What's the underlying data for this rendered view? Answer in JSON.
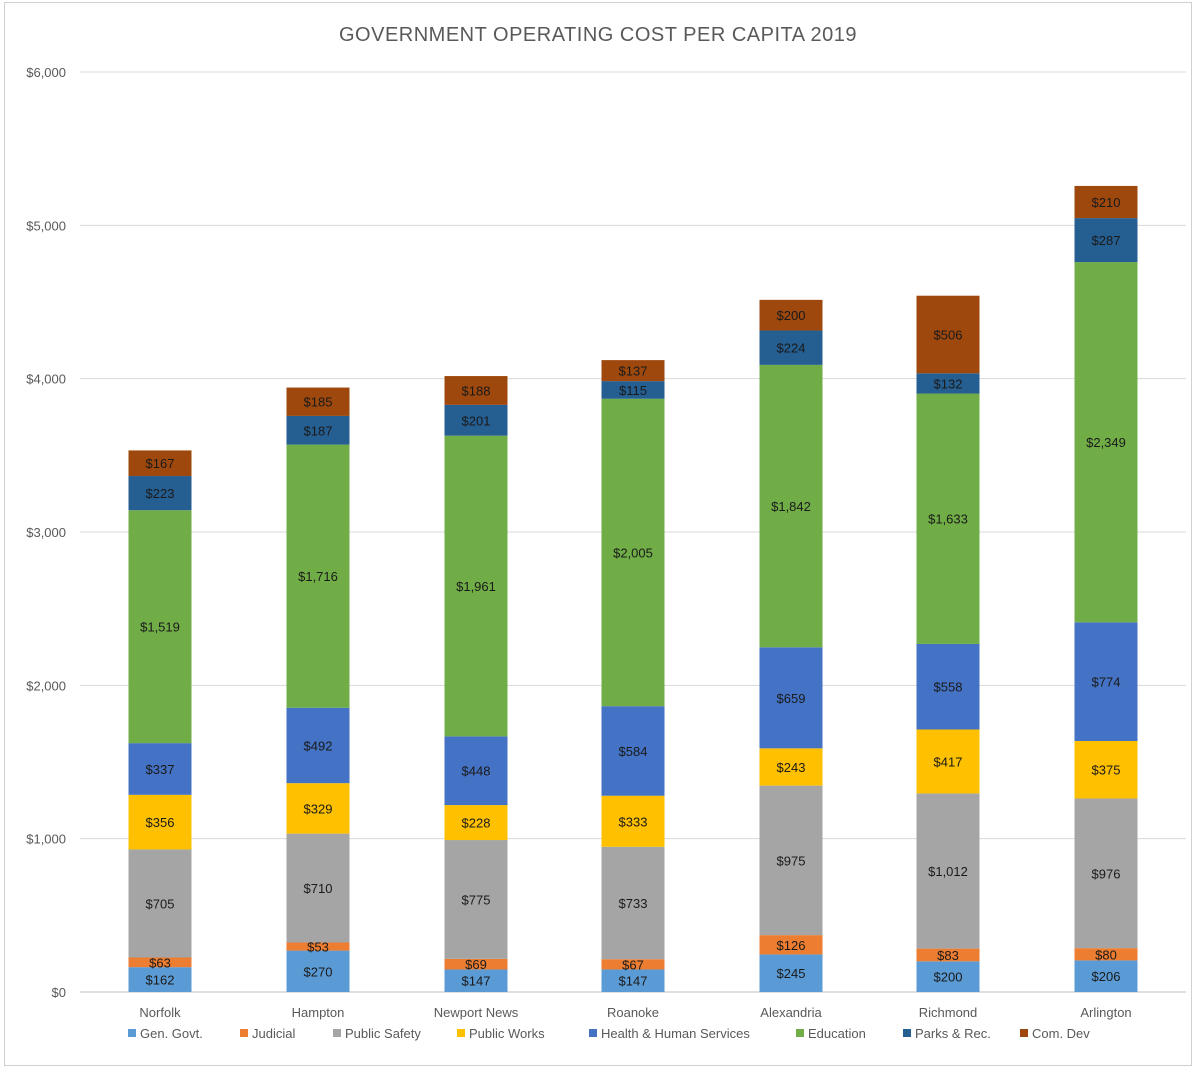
{
  "chart_data": {
    "type": "bar",
    "stacked": true,
    "title": "GOVERNMENT OPERATING COST PER CAPITA 2019",
    "xlabel": "",
    "ylabel": "",
    "ylim": [
      0,
      6000
    ],
    "y_ticks": [
      "$0",
      "$1,000",
      "$2,000",
      "$3,000",
      "$4,000",
      "$5,000",
      "$6,000"
    ],
    "y_tick_values": [
      0,
      1000,
      2000,
      3000,
      4000,
      5000,
      6000
    ],
    "grid": true,
    "legend_position": "bottom",
    "categories": [
      "Norfolk",
      "Hampton",
      "Newport News",
      "Roanoke",
      "Alexandria",
      "Richmond",
      "Arlington"
    ],
    "series": [
      {
        "name": "Gen. Govt.",
        "color": "#5b9bd5",
        "values": [
          162,
          270,
          147,
          147,
          245,
          200,
          206
        ],
        "labels": [
          "$162",
          "$270",
          "$147",
          "$147",
          "$245",
          "$200",
          "$206"
        ]
      },
      {
        "name": "Judicial",
        "color": "#ed7d31",
        "values": [
          63,
          53,
          69,
          67,
          126,
          83,
          80
        ],
        "labels": [
          "$63",
          "$53",
          "$69",
          "$67",
          "$126",
          "$83",
          "$80"
        ]
      },
      {
        "name": "Public Safety",
        "color": "#a5a5a5",
        "values": [
          705,
          710,
          775,
          733,
          975,
          1012,
          976
        ],
        "labels": [
          "$705",
          "$710",
          "$775",
          "$733",
          "$975",
          "$1,012",
          "$976"
        ]
      },
      {
        "name": "Public Works",
        "color": "#ffc000",
        "values": [
          356,
          329,
          228,
          333,
          243,
          417,
          375
        ],
        "labels": [
          "$356",
          "$329",
          "$228",
          "$333",
          "$243",
          "$417",
          "$375"
        ]
      },
      {
        "name": "Health & Human Services",
        "color": "#4472c4",
        "values": [
          337,
          492,
          448,
          584,
          659,
          558,
          774
        ],
        "labels": [
          "$337",
          "$492",
          "$448",
          "$584",
          "$659",
          "$558",
          "$774"
        ]
      },
      {
        "name": "Education",
        "color": "#70ad47",
        "values": [
          1519,
          1716,
          1961,
          2005,
          1842,
          1633,
          2349
        ],
        "labels": [
          "$1,519",
          "$1,716",
          "$1,961",
          "$2,005",
          "$1,842",
          "$1,633",
          "$2,349"
        ]
      },
      {
        "name": "Parks & Rec.",
        "color": "#255e91",
        "values": [
          223,
          187,
          201,
          115,
          224,
          132,
          287
        ],
        "labels": [
          "$223",
          "$187",
          "$201",
          "$115",
          "$224",
          "$132",
          "$287"
        ]
      },
      {
        "name": "Com. Dev",
        "color": "#9e480e",
        "values": [
          167,
          185,
          188,
          137,
          200,
          506,
          210
        ],
        "labels": [
          "$167",
          "$185",
          "$188",
          "$137",
          "$200",
          "$506",
          "$210"
        ]
      }
    ]
  }
}
